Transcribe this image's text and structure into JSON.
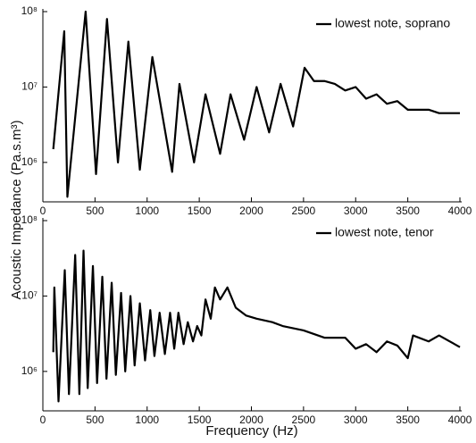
{
  "chart_data": [
    {
      "type": "line",
      "log_y": true,
      "legend": "upper right",
      "ylabel": "Acoustic Impedance (Pa.s.m³)",
      "x": [
        100,
        205,
        235,
        410,
        510,
        615,
        720,
        820,
        930,
        1050,
        1240,
        1310,
        1450,
        1560,
        1700,
        1800,
        1930,
        2050,
        2170,
        2280,
        2400,
        2510,
        2600,
        2700,
        2800,
        2900,
        3000,
        3100,
        3200,
        3300,
        3400,
        3500,
        3600,
        3700,
        3800,
        3900,
        4000
      ],
      "series": [
        {
          "name": "lowest note, soprano",
          "color": "#000000",
          "values": [
            1500000,
            55000000,
            350000,
            100000000,
            700000,
            80000000,
            1000000,
            40000000,
            800000,
            25000000,
            750000,
            11000000,
            1000000,
            8000000,
            1300000,
            8000000,
            2000000,
            10000000,
            2500000,
            11000000,
            3000000,
            18000000,
            12000000,
            12000000,
            11000000,
            9000000,
            10000000,
            7000000,
            8000000,
            6000000,
            6500000,
            5000000,
            5000000,
            5000000,
            4500000,
            4500000,
            4500000
          ]
        }
      ],
      "xlim": [
        0,
        4000
      ],
      "xticks": [
        0,
        500,
        1000,
        1500,
        2000,
        2500,
        3000,
        3500,
        4000
      ],
      "ylim": [
        300000,
        100000000
      ],
      "yticks": [
        {
          "value": 1000000,
          "label": "10⁶"
        },
        {
          "value": 10000000,
          "label": "10⁷"
        },
        {
          "value": 100000000,
          "label": "10⁸"
        }
      ]
    },
    {
      "type": "line",
      "log_y": true,
      "legend": "upper right",
      "xlabel": "Frequency (Hz)",
      "x": [
        100,
        110,
        150,
        210,
        250,
        310,
        350,
        390,
        430,
        480,
        520,
        570,
        610,
        660,
        700,
        750,
        790,
        840,
        880,
        930,
        980,
        1030,
        1070,
        1120,
        1170,
        1220,
        1260,
        1300,
        1350,
        1390,
        1440,
        1480,
        1520,
        1560,
        1610,
        1650,
        1700,
        1770,
        1850,
        1950,
        2050,
        2200,
        2300,
        2500,
        2700,
        2900,
        3000,
        3100,
        3200,
        3300,
        3400,
        3500,
        3550,
        3700,
        3800,
        4000
      ],
      "series": [
        {
          "name": "lowest note, tenor",
          "color": "#000000",
          "values": [
            1800000,
            13000000,
            400000,
            22000000,
            500000,
            35000000,
            500000,
            40000000,
            600000,
            25000000,
            700000,
            18000000,
            800000,
            15000000,
            900000,
            11000000,
            1000000,
            10000000,
            1200000,
            8000000,
            1400000,
            6500000,
            1600000,
            6000000,
            1700000,
            6000000,
            2000000,
            6000000,
            2300000,
            4500000,
            2500000,
            4000000,
            3000000,
            9000000,
            5000000,
            13000000,
            9000000,
            13000000,
            7000000,
            5500000,
            5000000,
            4500000,
            4000000,
            3500000,
            2800000,
            2800000,
            2000000,
            2300000,
            1800000,
            2500000,
            2200000,
            1500000,
            3000000,
            2500000,
            3000000,
            2100000
          ]
        }
      ],
      "xlim": [
        0,
        4000
      ],
      "xticks": [
        0,
        500,
        1000,
        1500,
        2000,
        2500,
        3000,
        3500,
        4000
      ],
      "ylim": [
        300000,
        100000000
      ],
      "yticks": [
        {
          "value": 1000000,
          "label": "10⁶"
        },
        {
          "value": 10000000,
          "label": "10⁷"
        },
        {
          "value": 100000000,
          "label": "10⁸"
        }
      ]
    }
  ]
}
